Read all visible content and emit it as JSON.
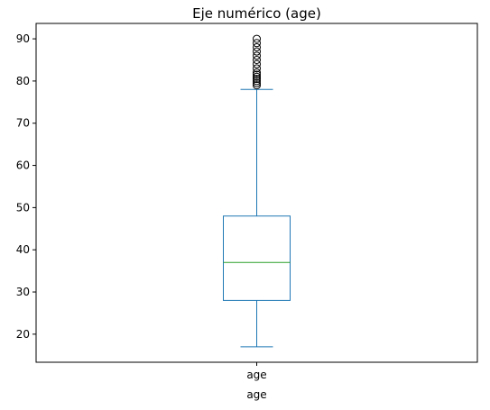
{
  "chart_data": {
    "type": "box",
    "title": "Eje numérico (age)",
    "xlabel": "age",
    "ylabel": "",
    "categories": [
      "age"
    ],
    "ylim": [
      13.35,
      93.65
    ],
    "yticks": [
      20,
      30,
      40,
      50,
      60,
      70,
      80,
      90
    ],
    "box": {
      "min": 17,
      "q1": 28,
      "median": 37,
      "q3": 48,
      "max": 78
    },
    "outliers": [
      79,
      79.5,
      80,
      80.5,
      81,
      81.5,
      82,
      83,
      84,
      85,
      86,
      87,
      88,
      89,
      90
    ],
    "grid": false,
    "colors": {
      "box": "#1f77b4",
      "median": "#2ca02c",
      "outlier": "#000000",
      "axis": "#000000"
    }
  }
}
